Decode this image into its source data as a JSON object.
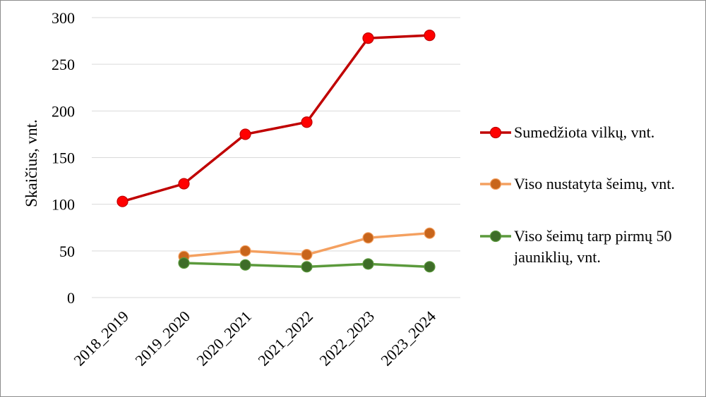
{
  "chart_data": {
    "type": "line",
    "ylabel": "Skaičius, vnt.",
    "xlabel": "",
    "title": "",
    "ylim": [
      0,
      300
    ],
    "yticks": [
      0,
      50,
      100,
      150,
      200,
      250,
      300
    ],
    "categories": [
      "2018_2019",
      "2019_2020",
      "2020_2021",
      "2021_2022",
      "2022_2023",
      "2023_2024"
    ],
    "grid": true,
    "legend_position": "right",
    "series": [
      {
        "name": "Sumedžiota vilkų, vnt.",
        "color": "#c00000",
        "marker_color": "#ff0000",
        "values": [
          103,
          122,
          175,
          188,
          278,
          281
        ]
      },
      {
        "name": "Viso nustatyta šeimų, vnt.",
        "color": "#f4a060",
        "marker_color": "#c8651b",
        "values": [
          null,
          44,
          50,
          46,
          64,
          69
        ]
      },
      {
        "name": "Viso šeimų tarp pirmų 50 jauniklių, vnt.",
        "color": "#5b9a3c",
        "marker_color": "#3e6d28",
        "values": [
          null,
          37,
          35,
          33,
          36,
          33
        ]
      }
    ]
  }
}
